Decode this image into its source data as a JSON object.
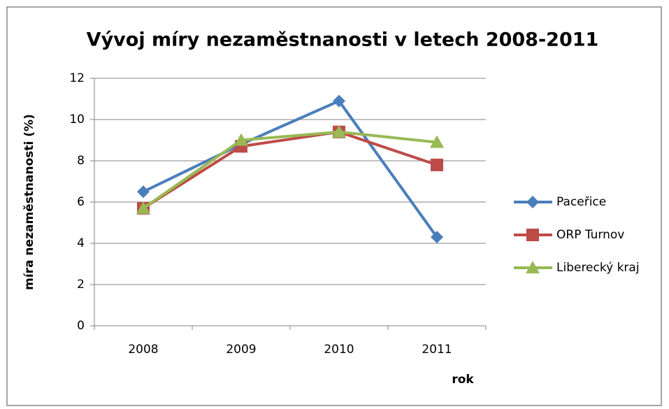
{
  "chart_data": {
    "type": "line",
    "title": "Vývoj míry nezaměstnanosti v letech 2008-2011",
    "y_label": "míra nezaměstnanosti (%)",
    "x_label": "rok",
    "categories": [
      "2008",
      "2009",
      "2010",
      "2011"
    ],
    "series": [
      {
        "name": "Paceřice",
        "color": "#4a7ebb",
        "values": [
          6.5,
          8.8,
          10.9,
          4.3
        ]
      },
      {
        "name": "ORP Turnov",
        "color": "#be4b48",
        "values": [
          5.7,
          8.7,
          9.4,
          7.8
        ]
      },
      {
        "name": "Liberecký kraj",
        "color": "#98b954",
        "values": [
          5.7,
          9.0,
          9.4,
          8.9
        ]
      }
    ],
    "ylim": [
      0,
      12
    ],
    "yticks": [
      0,
      2,
      4,
      6,
      8,
      10,
      12
    ],
    "grid": true,
    "legend": "right"
  }
}
